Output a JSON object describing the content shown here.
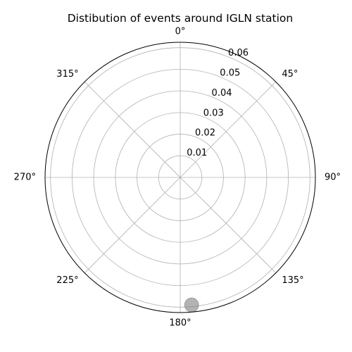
{
  "chart_data": {
    "type": "scatter",
    "polar": true,
    "title": "Distibution of events around IGLN station",
    "theta_zero_location": "N",
    "theta_direction": "clockwise",
    "theta_tick_labels": [
      "0°",
      "45°",
      "90°",
      "135°",
      "180°",
      "225°",
      "270°",
      "315°"
    ],
    "theta_tick_values": [
      0,
      45,
      90,
      135,
      180,
      225,
      270,
      315
    ],
    "r_tick_labels": [
      "0.01",
      "0.02",
      "0.03",
      "0.04",
      "0.05",
      "0.06"
    ],
    "r_tick_values": [
      0.01,
      0.02,
      0.03,
      0.04,
      0.05,
      0.06
    ],
    "r_label_position_deg": 22.5,
    "rlim": [
      0,
      0.0625
    ],
    "grid": true,
    "series": [
      {
        "points": [
          {
            "theta_deg": 174.9,
            "r": 0.0592
          }
        ],
        "color": "#808080",
        "alpha": 0.6
      }
    ]
  }
}
